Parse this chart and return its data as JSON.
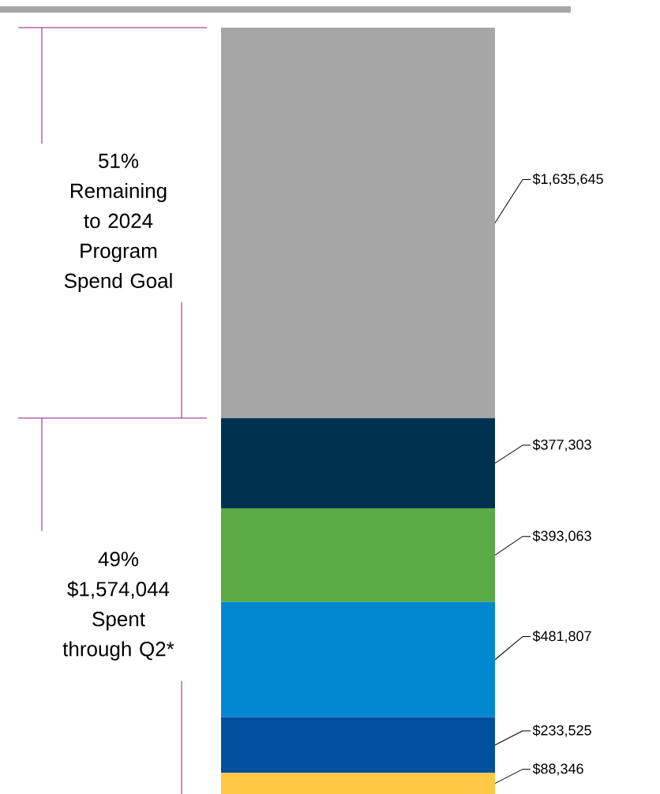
{
  "chart_data": {
    "type": "bar",
    "stacked": true,
    "categories": [
      null
    ],
    "series": [
      {
        "color": "#ffc845",
        "values": [
          88346
        ],
        "value_labels": [
          "$88,346"
        ]
      },
      {
        "color": "#00509e",
        "values": [
          233525
        ],
        "value_labels": [
          "$233,525"
        ]
      },
      {
        "color": "#0088d0",
        "values": [
          481807
        ],
        "value_labels": [
          "$481,807"
        ]
      },
      {
        "color": "#5aaa46",
        "values": [
          393063
        ],
        "value_labels": [
          "$393,063"
        ]
      },
      {
        "color": "#003150",
        "values": [
          377303
        ],
        "value_labels": [
          "$377,303"
        ]
      },
      {
        "color": "#a6a6a6",
        "values": [
          1635645
        ],
        "value_labels": [
          "$1,635,645"
        ]
      }
    ],
    "annotations": [
      "51% Remaining to 2024 Program Spend Goal",
      "49% $1,574,044 Spent through Q2*"
    ]
  }
}
